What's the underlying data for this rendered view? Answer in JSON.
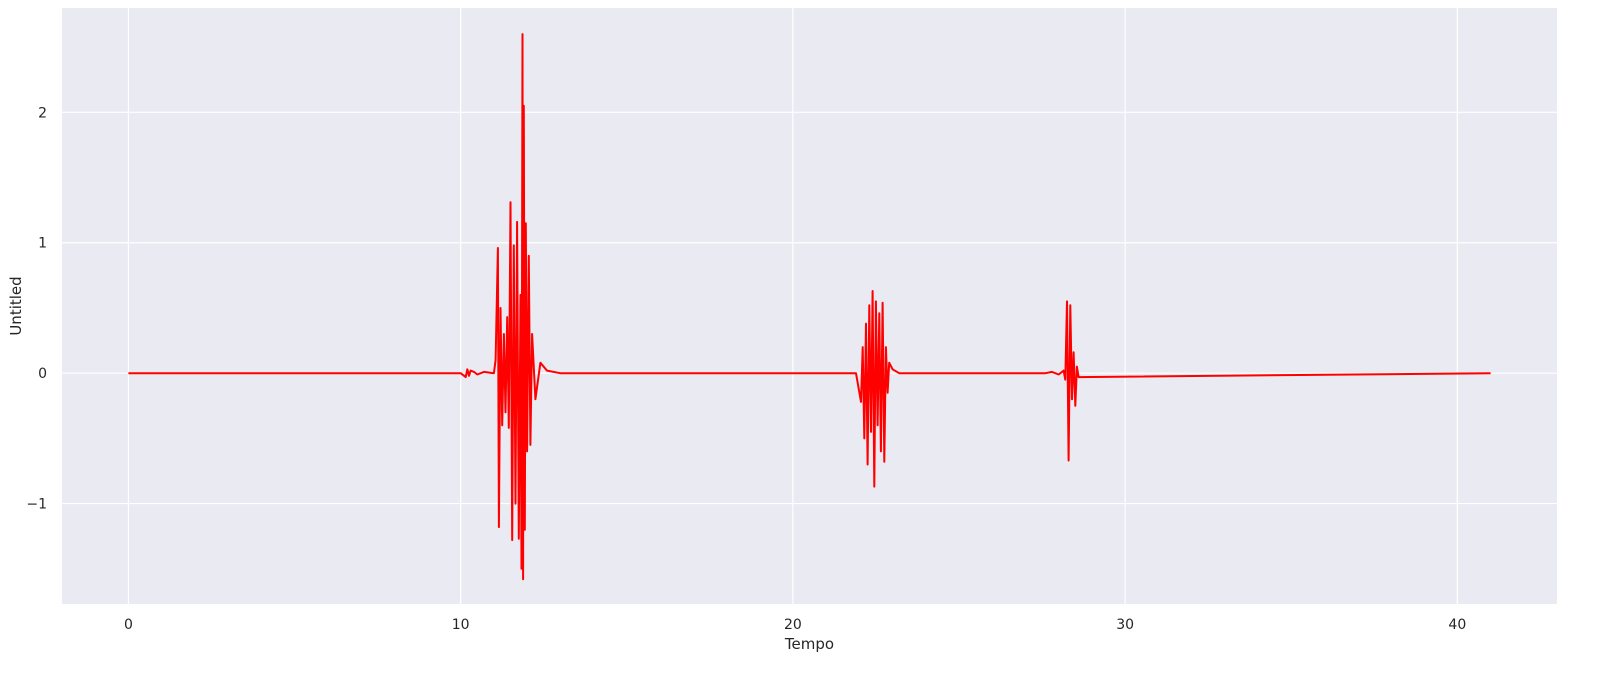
{
  "chart_data": {
    "type": "line",
    "title": "",
    "xlabel": "Tempo",
    "ylabel": "Untitled",
    "xlim": [
      -2,
      43
    ],
    "ylim": [
      -1.77,
      2.8
    ],
    "grid": true,
    "background": "#EAEAF2",
    "grid_color": "#FFFFFF",
    "line_color": "#FF0000",
    "x_ticks": [
      0,
      10,
      20,
      30,
      40
    ],
    "x_tick_labels": [
      "0",
      "10",
      "20",
      "30",
      "40"
    ],
    "y_ticks": [
      -1,
      0,
      1,
      2
    ],
    "y_tick_labels": [
      "−1",
      "0",
      "1",
      "2"
    ],
    "series": [
      {
        "values_description_free": true,
        "x": [
          0,
          10.0,
          10.15,
          10.2,
          10.25,
          10.3,
          10.4,
          10.5,
          10.7,
          11.0,
          11.05,
          11.12,
          11.15,
          11.2,
          11.25,
          11.3,
          11.35,
          11.4,
          11.45,
          11.5,
          11.55,
          11.6,
          11.65,
          11.7,
          11.75,
          11.8,
          11.83,
          11.86,
          11.88,
          11.9,
          11.93,
          11.96,
          12.0,
          12.05,
          12.1,
          12.15,
          12.25,
          12.4,
          12.6,
          13.0,
          21.9,
          22.05,
          22.1,
          22.15,
          22.2,
          22.25,
          22.3,
          22.35,
          22.4,
          22.45,
          22.5,
          22.55,
          22.6,
          22.65,
          22.7,
          22.75,
          22.8,
          22.85,
          22.9,
          23.0,
          23.2,
          27.6,
          27.8,
          28.0,
          28.15,
          28.2,
          28.25,
          28.3,
          28.35,
          28.4,
          28.45,
          28.5,
          28.55,
          28.6,
          41
        ],
        "y": [
          0,
          0,
          -0.03,
          0.03,
          -0.02,
          0.02,
          0.01,
          -0.01,
          0.01,
          0,
          0.1,
          0.96,
          -1.18,
          0.5,
          -0.4,
          0.3,
          -0.3,
          0.43,
          -0.42,
          1.31,
          -1.28,
          0.98,
          -1.0,
          1.16,
          -1.27,
          0.6,
          -1.5,
          2.6,
          -1.58,
          2.05,
          -1.2,
          1.15,
          -0.6,
          0.9,
          -0.55,
          0.3,
          -0.2,
          0.08,
          0.02,
          0,
          0,
          -0.22,
          0.2,
          -0.5,
          0.38,
          -0.7,
          0.52,
          -0.45,
          0.63,
          -0.87,
          0.55,
          -0.4,
          0.46,
          -0.6,
          0.54,
          -0.68,
          0.2,
          -0.15,
          0.08,
          0.03,
          0,
          0,
          0.01,
          -0.01,
          0.02,
          -0.05,
          0.55,
          -0.67,
          0.52,
          -0.2,
          0.16,
          -0.25,
          0.05,
          -0.03,
          0
        ]
      }
    ]
  }
}
